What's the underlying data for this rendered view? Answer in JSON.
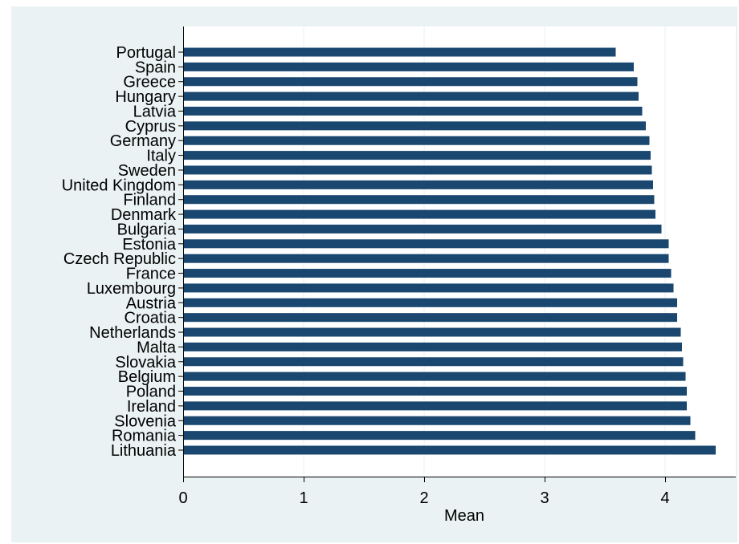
{
  "chart_data": {
    "type": "bar",
    "orientation": "horizontal",
    "categories": [
      "Portugal",
      "Spain",
      "Greece",
      "Hungary",
      "Latvia",
      "Cyprus",
      "Germany",
      "Italy",
      "Sweden",
      "United Kingdom",
      "Finland",
      "Denmark",
      "Bulgaria",
      "Estonia",
      "Czech Republic",
      "France",
      "Luxembourg",
      "Austria",
      "Croatia",
      "Netherlands",
      "Malta",
      "Slovakia",
      "Belgium",
      "Poland",
      "Ireland",
      "Slovenia",
      "Romania",
      "Lithuania"
    ],
    "values": [
      3.59,
      3.74,
      3.77,
      3.78,
      3.81,
      3.84,
      3.87,
      3.88,
      3.89,
      3.9,
      3.91,
      3.92,
      3.97,
      4.03,
      4.03,
      4.05,
      4.07,
      4.1,
      4.1,
      4.13,
      4.14,
      4.15,
      4.17,
      4.18,
      4.18,
      4.21,
      4.25,
      4.42
    ],
    "xlabel": "Mean",
    "ylabel": "",
    "title": "",
    "xlim": [
      0,
      4.55
    ],
    "xticks": [
      0,
      1,
      2,
      3,
      4
    ],
    "grid": "vertical",
    "colors": {
      "outer_background": "#eaf2f3",
      "plot_background": "#ffffff",
      "bar": "#1a476f",
      "gridline": "#eaf2f3",
      "axis": "#000000"
    }
  }
}
